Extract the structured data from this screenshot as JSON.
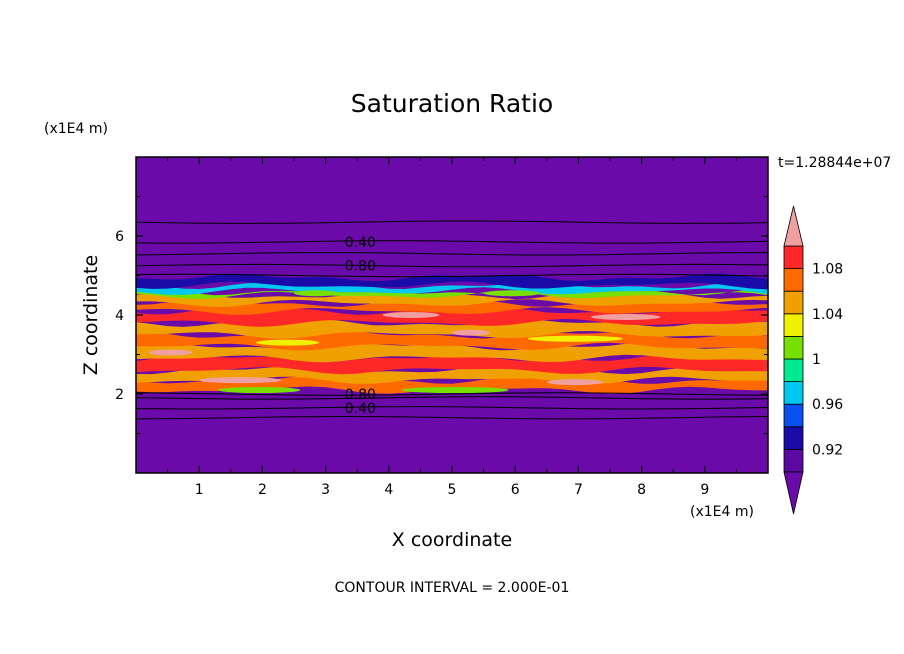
{
  "chart_data": {
    "type": "heatmap",
    "title": "Saturation Ratio",
    "time_label": "t=1.28844e+07",
    "xlabel": "X coordinate",
    "ylabel": "Z coordinate",
    "x_unit": "(x1E4 m)",
    "y_unit": "(x1E4 m)",
    "xlim": [
      0,
      10
    ],
    "ylim": [
      0,
      8
    ],
    "x_ticks": [
      "1",
      "2",
      "3",
      "4",
      "5",
      "6",
      "7",
      "8",
      "9"
    ],
    "y_ticks": [
      "2",
      "4",
      "6"
    ],
    "contour_interval_text": "CONTOUR INTERVAL = 2.000E-01",
    "colorbar": {
      "levels": [
        0.9,
        0.92,
        0.94,
        0.96,
        0.98,
        1.0,
        1.02,
        1.04,
        1.06,
        1.08,
        1.1
      ],
      "labels": [
        "0.92",
        "0.96",
        "1",
        "1.04",
        "1.08"
      ],
      "colors": [
        "#5a0aa0",
        "#1a0aa8",
        "#0a50f0",
        "#00c8f0",
        "#00e890",
        "#78e000",
        "#f0f000",
        "#f0a000",
        "#ff6a00",
        "#ff2828"
      ],
      "under_color": "#6a0aa8",
      "over_color": "#f0a0a0"
    },
    "contour_labels": [
      {
        "text": "0.40",
        "x": 3.55,
        "z": 5.85
      },
      {
        "text": "0.80",
        "x": 3.55,
        "z": 5.25
      },
      {
        "text": "0.80",
        "x": 3.55,
        "z": 2.0
      },
      {
        "text": "0.40",
        "x": 3.55,
        "z": 1.65
      }
    ],
    "bands": [
      {
        "z0": 2.1,
        "z1": 2.35,
        "level": "1.06"
      },
      {
        "z0": 2.35,
        "z1": 2.6,
        "level": "1.04"
      },
      {
        "z0": 2.6,
        "z1": 2.9,
        "level": "1.08"
      },
      {
        "z0": 2.9,
        "z1": 3.2,
        "level": "1.04"
      },
      {
        "z0": 3.2,
        "z1": 3.5,
        "level": "1.06"
      },
      {
        "z0": 3.5,
        "z1": 3.8,
        "level": "1.04"
      },
      {
        "z0": 3.8,
        "z1": 4.1,
        "level": "1.08"
      },
      {
        "z0": 4.1,
        "z1": 4.3,
        "level": "1.06"
      },
      {
        "z0": 4.3,
        "z1": 4.5,
        "level": "1.04"
      },
      {
        "z0": 4.5,
        "z1": 4.6,
        "level": "1.0"
      },
      {
        "z0": 4.6,
        "z1": 4.75,
        "level": "0.96"
      },
      {
        "z0": 4.75,
        "z1": 4.95,
        "level": "0.92"
      }
    ]
  }
}
